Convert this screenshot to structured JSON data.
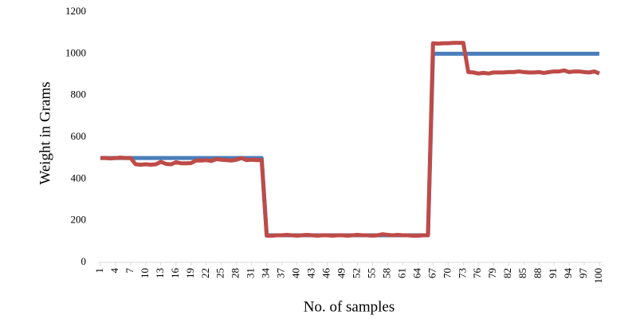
{
  "chart_data": {
    "type": "line",
    "x_label": "No. of samples",
    "y_label": "Weight in Grams",
    "x": [
      1,
      2,
      3,
      4,
      5,
      6,
      7,
      8,
      9,
      10,
      11,
      12,
      13,
      14,
      15,
      16,
      17,
      18,
      19,
      20,
      21,
      22,
      23,
      24,
      25,
      26,
      27,
      28,
      29,
      30,
      31,
      32,
      33,
      34,
      35,
      36,
      37,
      38,
      39,
      40,
      41,
      42,
      43,
      44,
      45,
      46,
      47,
      48,
      49,
      50,
      51,
      52,
      53,
      54,
      55,
      56,
      57,
      58,
      59,
      60,
      61,
      62,
      63,
      64,
      65,
      66,
      67,
      68,
      69,
      70,
      71,
      72,
      73,
      74,
      75,
      76,
      77,
      78,
      79,
      80,
      81,
      82,
      83,
      84,
      85,
      86,
      87,
      88,
      89,
      90,
      91,
      92,
      93,
      94,
      95,
      96,
      97,
      98,
      99,
      100
    ],
    "series": [
      {
        "color": "#4a7ebb",
        "values": [
          500,
          500,
          500,
          500,
          500,
          500,
          500,
          500,
          500,
          500,
          500,
          500,
          500,
          500,
          500,
          500,
          500,
          500,
          500,
          500,
          500,
          500,
          500,
          500,
          500,
          500,
          500,
          500,
          500,
          500,
          500,
          500,
          500,
          130,
          130,
          130,
          130,
          130,
          130,
          130,
          130,
          130,
          130,
          130,
          130,
          130,
          130,
          130,
          130,
          130,
          130,
          130,
          130,
          130,
          130,
          130,
          130,
          130,
          130,
          130,
          130,
          130,
          130,
          130,
          130,
          130,
          1000,
          1000,
          1000,
          1000,
          1000,
          1000,
          1000,
          1000,
          1000,
          1000,
          1000,
          1000,
          1000,
          1000,
          1000,
          1000,
          1000,
          1000,
          1000,
          1000,
          1000,
          1000,
          1000,
          1000,
          1000,
          1000,
          1000,
          1000,
          1000,
          1000,
          1000,
          1000,
          1000,
          1000
        ]
      },
      {
        "color": "#be4b48",
        "values": [
          500,
          500,
          498,
          500,
          502,
          500,
          500,
          470,
          468,
          470,
          468,
          470,
          482,
          472,
          470,
          480,
          475,
          475,
          476,
          488,
          488,
          490,
          486,
          495,
          492,
          490,
          488,
          492,
          500,
          490,
          492,
          490,
          490,
          128,
          128,
          130,
          130,
          132,
          130,
          128,
          130,
          132,
          130,
          128,
          130,
          130,
          128,
          130,
          130,
          128,
          130,
          132,
          130,
          130,
          128,
          130,
          135,
          132,
          130,
          132,
          130,
          130,
          128,
          128,
          130,
          130,
          1050,
          1048,
          1050,
          1050,
          1052,
          1052,
          1052,
          912,
          910,
          905,
          908,
          905,
          910,
          910,
          910,
          912,
          912,
          915,
          912,
          910,
          910,
          912,
          908,
          912,
          915,
          915,
          920,
          912,
          915,
          915,
          912,
          910,
          915,
          905
        ]
      }
    ],
    "xlim": [
      0.5,
      100.5
    ],
    "xticks": [
      1,
      4,
      7,
      10,
      13,
      16,
      19,
      22,
      25,
      28,
      31,
      34,
      37,
      40,
      43,
      46,
      49,
      52,
      55,
      58,
      61,
      64,
      67,
      70,
      73,
      76,
      79,
      82,
      85,
      88,
      91,
      94,
      97,
      100
    ],
    "ylim": [
      0,
      1200
    ],
    "yticks": [
      0,
      200,
      400,
      600,
      800,
      1000,
      1200
    ]
  }
}
